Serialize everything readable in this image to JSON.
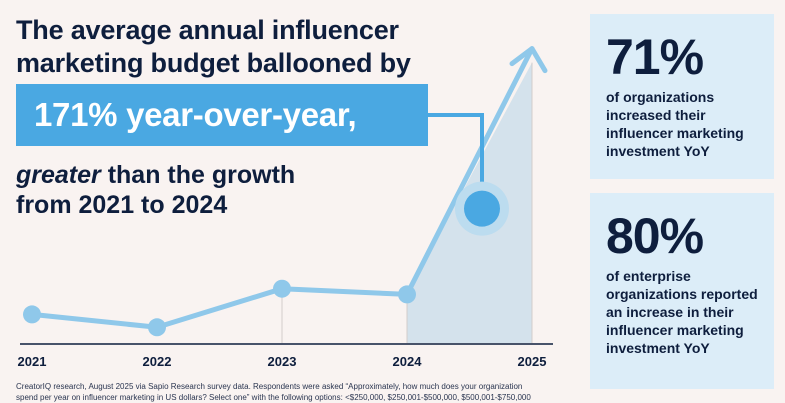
{
  "headline": {
    "line1": "The average annual influencer",
    "line2": "marketing budget ballooned by",
    "highlight": "171% year-over-year,",
    "emphasis": "greater",
    "rest": " than the growth",
    "line4": "from 2021 to 2024"
  },
  "chart_data": {
    "type": "line",
    "title": "",
    "categories": [
      "2021",
      "2022",
      "2023",
      "2024",
      "2025"
    ],
    "series": [
      {
        "name": "Average annual influencer marketing budget (relative)",
        "values": [
          1.0,
          0.55,
          1.9,
          1.7,
          10.3
        ]
      }
    ],
    "highlight_point": {
      "x": 2024.6,
      "y": 4.7
    },
    "ylim": [
      0,
      12
    ],
    "xlabel": "",
    "ylabel": "",
    "colors": {
      "line": "#8fc8ea",
      "point": "#8fc8ea",
      "highlight": "#4aa8e2",
      "shade": "#d4e2ec",
      "axis": "#0e1e3d"
    }
  },
  "stats": [
    {
      "value": "71%",
      "description": "of organizations increased their influencer marketing investment YoY"
    },
    {
      "value": "80%",
      "description": "of enterprise organizations reported an increase in their influencer marketing investment YoY"
    }
  ],
  "footnote": {
    "line1": "CreatorIQ research, August 2025 via Sapio Research survey data. Respondents were asked “Approximately, how much does your organization",
    "line2": "spend per year on influencer marketing in US dollars? Select one” with the following options: <$250,000, $250,001-$500,000, $500,001-$750,000"
  }
}
